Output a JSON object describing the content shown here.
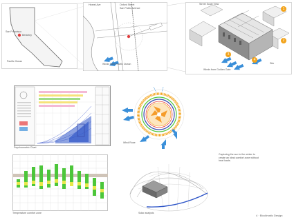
{
  "map_state": {
    "place_a": "San Francisco",
    "place_b": "Berkeley",
    "ocean": "Pacific Ocean"
  },
  "map_street": {
    "street_a": "Hearst Ave",
    "street_b": "Oxford Street",
    "street_c": "San Pablo Avenue",
    "caption": "Winds from Pacific Ocean"
  },
  "massing": {
    "label_top": "Street Scale View",
    "caption": "Winds from Golden Gate",
    "label_side": "Site",
    "markers": [
      "1",
      "2",
      "3",
      "4"
    ]
  },
  "psychrometric": {
    "caption": "Psychrometric Chart"
  },
  "wind_rose": {
    "caption": "Wind Rose"
  },
  "note": {
    "text": "Capturing the sun in the winter to create an ideal comfort zone without heat loads."
  },
  "temperature": {
    "caption": "Temperature comfort zone"
  },
  "sun_path": {
    "caption": "Solar analysis"
  },
  "footer": {
    "page_label": "4 · Bioclimatic Design"
  },
  "colors": {
    "accent_orange": "#f2a31b",
    "wind_blue": "#3a8fd9",
    "comfort_green": "#4cc63a",
    "comfort_yellow": "#e8e84a"
  }
}
